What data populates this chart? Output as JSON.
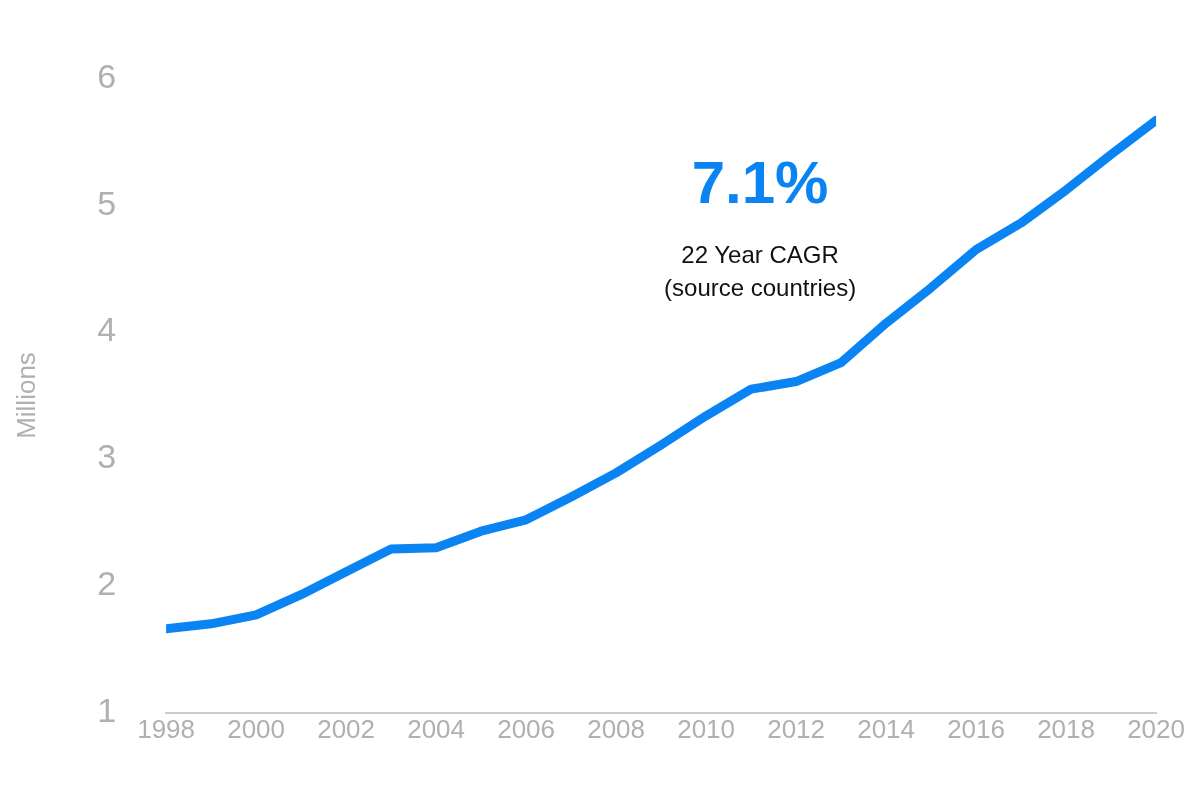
{
  "chart_data": {
    "type": "line",
    "ylabel": "Millions",
    "x": [
      1998,
      1999,
      2000,
      2001,
      2002,
      2003,
      2004,
      2005,
      2006,
      2007,
      2008,
      2009,
      2010,
      2011,
      2012,
      2013,
      2014,
      2015,
      2016,
      2017,
      2018,
      2019,
      2020
    ],
    "series": [
      {
        "color": "#0a84f2",
        "values": [
          1.66,
          1.7,
          1.77,
          1.93,
          2.11,
          2.29,
          2.3,
          2.43,
          2.52,
          2.7,
          2.89,
          3.11,
          3.34,
          3.55,
          3.61,
          3.76,
          4.07,
          4.35,
          4.65,
          4.86,
          5.12,
          5.4,
          5.67
        ]
      }
    ],
    "xlim": [
      1998,
      2020
    ],
    "xticks": [
      1998,
      2000,
      2002,
      2004,
      2006,
      2008,
      2010,
      2012,
      2014,
      2016,
      2018,
      2020
    ],
    "ylim": [
      1,
      6
    ],
    "yticks": [
      1,
      2,
      3,
      4,
      5,
      6
    ],
    "annotations": [
      "7.1%",
      "22 Year CAGR",
      "(source countries)"
    ],
    "grid": false,
    "legend": false,
    "marker": "none",
    "line_style": "solid"
  }
}
